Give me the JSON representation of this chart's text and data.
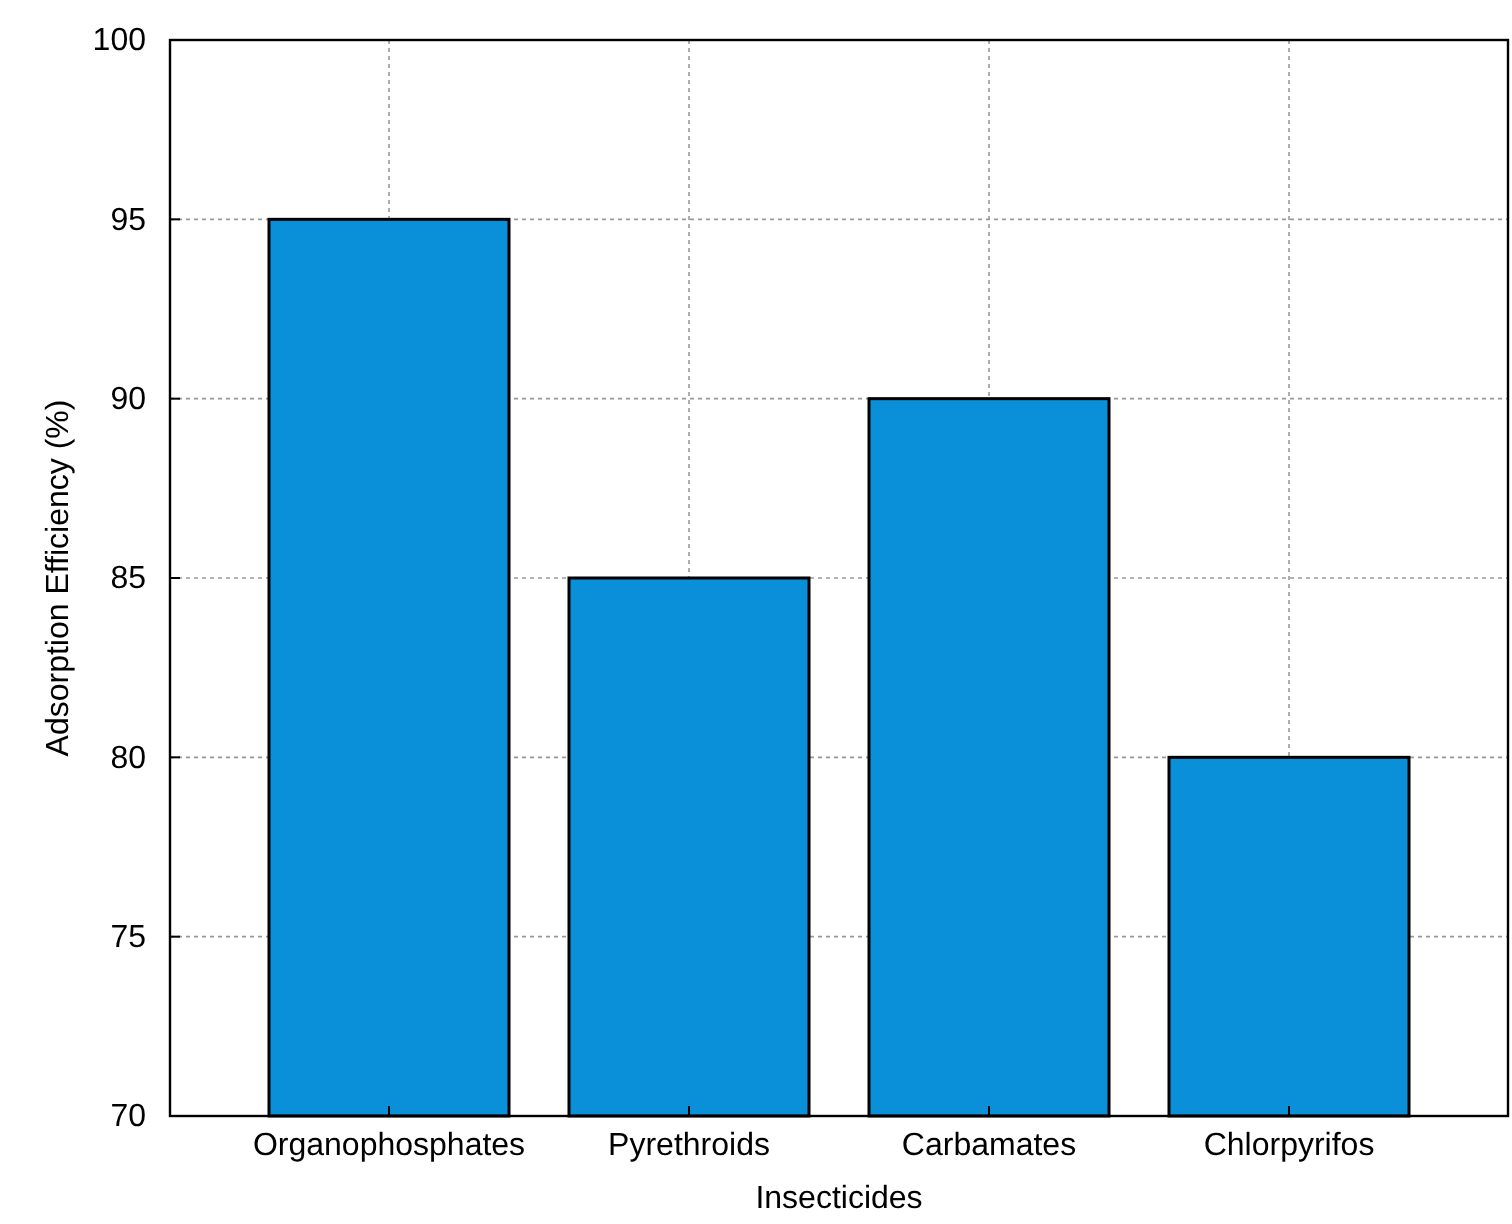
{
  "chart_data": {
    "type": "bar",
    "xlabel": "Insecticides",
    "ylabel": "Adsorption Efficiency (%)",
    "categories": [
      "Organophosphates",
      "Pyrethroids",
      "Carbamates",
      "Chlorpyrifos"
    ],
    "values": [
      95,
      85,
      90,
      80
    ],
    "color": "#0a8fd9",
    "ylim": [
      70,
      100
    ],
    "yticks": [
      70,
      75,
      80,
      85,
      90,
      95,
      100
    ],
    "grid": true
  }
}
